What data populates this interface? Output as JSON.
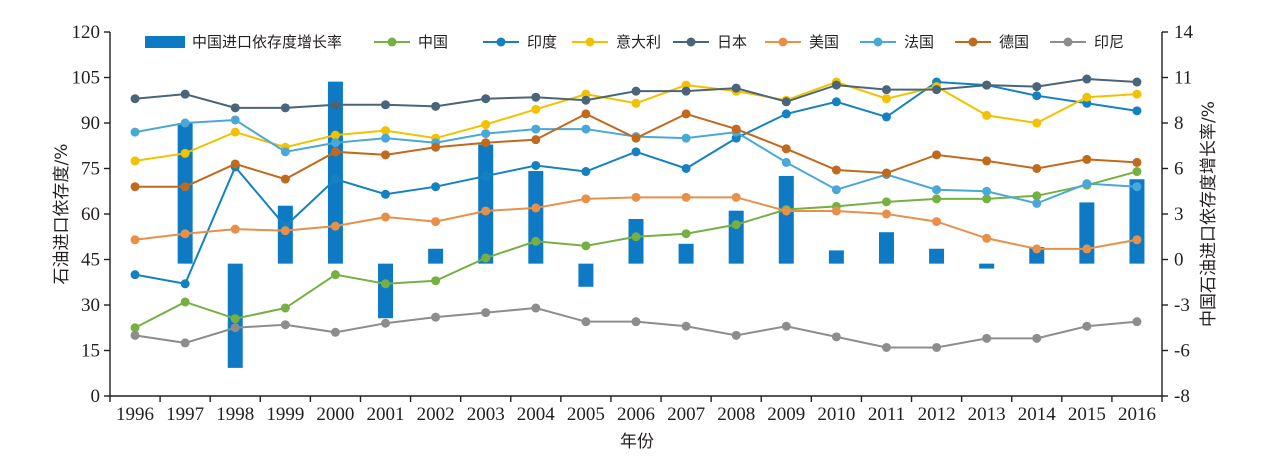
{
  "chart_data": {
    "type": "bar+line",
    "title": "",
    "xlabel": "年份",
    "ylabel_left": "石油进口依存度/%",
    "ylabel_right": "中国石油进口依存度增长率/%",
    "ylim_left": [
      0,
      120
    ],
    "ylim_right": [
      -8,
      14
    ],
    "yticks_left": [
      "0",
      "15",
      "30",
      "45",
      "60",
      "75",
      "90",
      "105",
      "120"
    ],
    "yticks_right": [
      "-8",
      "-6",
      "-3",
      "0",
      "3",
      "6",
      "8",
      "11",
      "14"
    ],
    "categories": [
      "1996",
      "1997",
      "1998",
      "1999",
      "2000",
      "2001",
      "2002",
      "2003",
      "2004",
      "2005",
      "2006",
      "2007",
      "2008",
      "2009",
      "2010",
      "2011",
      "2012",
      "2013",
      "2014",
      "2015",
      "2016"
    ],
    "bar_series": {
      "name": "中国进口依存度增长率",
      "color": "#0e7ac4",
      "axis": "right",
      "values": [
        null,
        8.5,
        -6.3,
        3.5,
        11.0,
        -3.3,
        0.9,
        7.2,
        5.6,
        -1.4,
        2.7,
        1.2,
        3.2,
        5.3,
        0.8,
        1.9,
        0.9,
        -0.3,
        1.0,
        3.7,
        5.1
      ]
    },
    "series": [
      {
        "name": "中国",
        "color": "#76b043",
        "axis": "left",
        "values": [
          22.5,
          31.0,
          25.5,
          29.0,
          40.0,
          37.0,
          38.0,
          45.5,
          51.0,
          49.5,
          52.5,
          53.5,
          56.5,
          61.5,
          62.5,
          64.0,
          65.0,
          65.0,
          66.0,
          69.5,
          74.0
        ]
      },
      {
        "name": "印度",
        "color": "#1482c0",
        "axis": "left",
        "values": [
          40.0,
          37.0,
          75.5,
          56.0,
          71.5,
          66.5,
          69.0,
          72.5,
          76.0,
          74.0,
          80.5,
          75.0,
          85.0,
          93.0,
          97.0,
          92.0,
          103.5,
          102.5,
          99.0,
          96.5,
          94.0
        ]
      },
      {
        "name": "意大利",
        "color": "#f2c200",
        "axis": "left",
        "values": [
          77.5,
          80.0,
          87.0,
          82.0,
          86.0,
          87.5,
          85.0,
          89.5,
          94.5,
          99.5,
          96.5,
          102.5,
          100.5,
          97.5,
          103.5,
          98.0,
          102.0,
          92.5,
          90.0,
          98.5,
          99.5
        ]
      },
      {
        "name": "日本",
        "color": "#4a6579",
        "axis": "left",
        "values": [
          98.0,
          99.5,
          95.0,
          95.0,
          96.0,
          96.0,
          95.5,
          98.0,
          98.5,
          97.5,
          100.5,
          100.5,
          101.5,
          97.0,
          102.5,
          101.0,
          101.0,
          102.5,
          102.0,
          104.5,
          103.5
        ]
      },
      {
        "name": "美国",
        "color": "#e8904a",
        "axis": "left",
        "values": [
          51.5,
          53.5,
          55.0,
          54.5,
          56.0,
          59.0,
          57.5,
          61.0,
          62.0,
          65.0,
          65.5,
          65.5,
          65.5,
          61.0,
          61.0,
          60.0,
          57.5,
          52.0,
          48.5,
          48.5,
          51.5
        ]
      },
      {
        "name": "法国",
        "color": "#4aa8d8",
        "axis": "left",
        "values": [
          87.0,
          90.0,
          91.0,
          80.5,
          83.5,
          85.0,
          83.5,
          86.5,
          88.0,
          88.0,
          85.5,
          85.0,
          87.0,
          77.0,
          68.0,
          73.0,
          68.0,
          67.5,
          63.5,
          70.0,
          69.0
        ]
      },
      {
        "name": "德国",
        "color": "#c06a1e",
        "axis": "left",
        "values": [
          69.0,
          69.0,
          76.5,
          71.5,
          80.5,
          79.5,
          82.0,
          83.5,
          84.5,
          93.0,
          85.0,
          93.0,
          88.0,
          81.5,
          74.5,
          73.5,
          79.5,
          77.5,
          75.0,
          78.0,
          77.0
        ]
      },
      {
        "name": "印尼",
        "color": "#8d8d8d",
        "axis": "left",
        "values": [
          20.0,
          17.5,
          22.5,
          23.5,
          21.0,
          24.0,
          26.0,
          27.5,
          29.0,
          24.5,
          24.5,
          23.0,
          20.0,
          23.0,
          19.5,
          16.0,
          16.0,
          19.0,
          19.0,
          23.0,
          24.5
        ]
      }
    ],
    "legend": "top",
    "grid": false
  }
}
